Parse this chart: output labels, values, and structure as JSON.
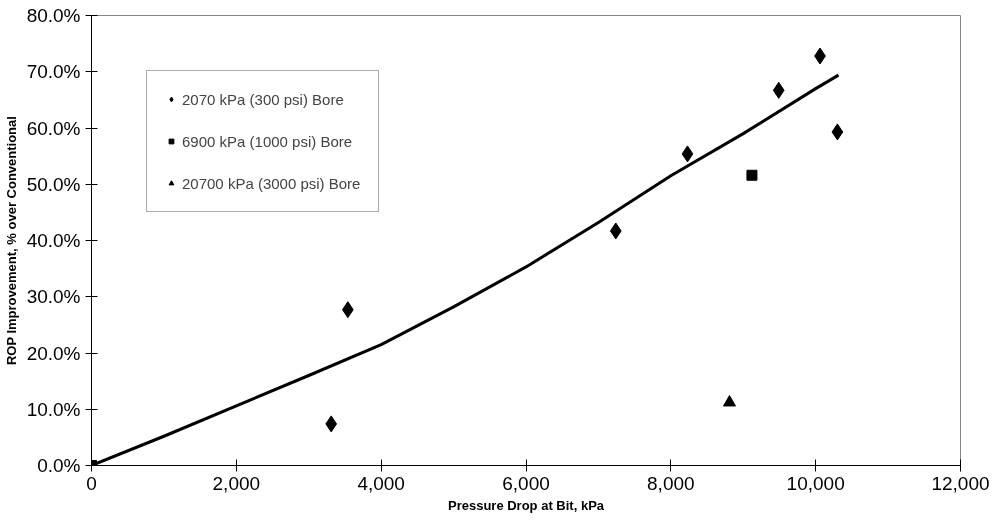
{
  "chart_data": {
    "type": "scatter",
    "xlabel": "Pressure Drop at Bit, kPa",
    "ylabel": "ROP Improvement, % over Conventional",
    "xlim": [
      0,
      12000
    ],
    "xticks": [
      0,
      {
        "value": 2000,
        "label": "2,000"
      },
      {
        "value": 4000,
        "label": "4,000"
      },
      {
        "value": 6000,
        "label": "6,000"
      },
      {
        "value": 8000,
        "label": "8,000"
      },
      {
        "value": 10000,
        "label": "10,000"
      },
      {
        "value": 12000,
        "label": "12,000"
      }
    ],
    "ylim": [
      0,
      80
    ],
    "yticks": [
      {
        "value": 0,
        "label": "0.0%"
      },
      {
        "value": 10,
        "label": "10.0%"
      },
      {
        "value": 20,
        "label": "20.0%"
      },
      {
        "value": 30,
        "label": "30.0%"
      },
      {
        "value": 40,
        "label": "40.0%"
      },
      {
        "value": 50,
        "label": "50.0%"
      },
      {
        "value": 60,
        "label": "60.0%"
      },
      {
        "value": 70,
        "label": "70.0%"
      },
      {
        "value": 80,
        "label": "80.0%"
      }
    ],
    "grid": false,
    "legend": "top left",
    "series": [
      {
        "name": "2070 kPa (300 psi) Bore",
        "color": "#000000",
        "marker": "diamond",
        "x": [
          3310,
          3540,
          7240,
          8230,
          9490,
          10060,
          10300
        ],
        "values": [
          7.4,
          27.7,
          41.7,
          55.4,
          66.7,
          72.8,
          59.3
        ]
      },
      {
        "name": "6900 kPa (1000 psi) Bore",
        "color": "#000000",
        "marker": "square",
        "x": [
          0,
          9120
        ],
        "values": [
          0,
          51.6
        ]
      },
      {
        "name": "20700 kPa (3000 psi) Bore",
        "color": "#000000",
        "marker": "triangle",
        "x": [
          8810
        ],
        "values": [
          11.2
        ]
      },
      {
        "type": "line",
        "color": "#000000",
        "marker": "none",
        "x": [
          0,
          1000,
          2000,
          3000,
          4000,
          5000,
          6000,
          7000,
          8000,
          9000,
          10000,
          10315
        ],
        "values": [
          0,
          5.2,
          10.6,
          16,
          21.5,
          28.2,
          35.3,
          43.2,
          51.5,
          59,
          67,
          69.4
        ]
      }
    ]
  }
}
